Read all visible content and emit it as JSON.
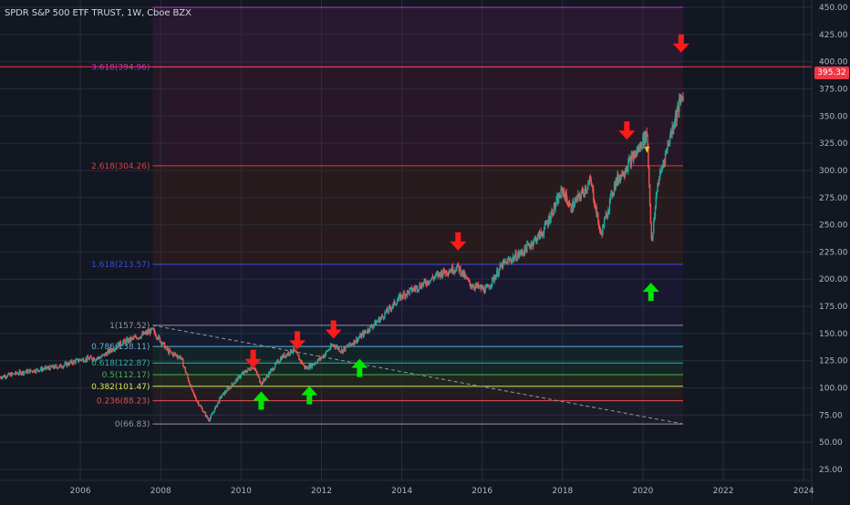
{
  "header": {
    "title": "SPDR S&P 500 ETF TRUST, 1W, Cboe BZX"
  },
  "price_label": {
    "value": "395.32",
    "color": "#f23645"
  },
  "colors": {
    "background": "#131722",
    "grid": "#2a2e39",
    "axis_text": "#b2b5be",
    "up_arrow": "#00e600",
    "down_arrow": "#ff1a1a",
    "candle": "#26a69a"
  },
  "chart_data": {
    "type": "line",
    "title": "SPDR S&P 500 ETF TRUST, 1W, Cboe BZX",
    "xlabel": "",
    "ylabel": "",
    "xlim": [
      2004.0,
      2024.2
    ],
    "ylim": [
      20,
      455
    ],
    "x_ticks": [
      "2006",
      "2008",
      "2010",
      "2012",
      "2014",
      "2016",
      "2018",
      "2020",
      "2022",
      "2024"
    ],
    "y_ticks": [
      "450.00",
      "425.00",
      "400.00",
      "375.00",
      "350.00",
      "325.00",
      "300.00",
      "275.00",
      "250.00",
      "225.00",
      "200.00",
      "175.00",
      "150.00",
      "125.00",
      "100.00",
      "75.00",
      "50.00",
      "25.00"
    ],
    "grid": true,
    "series": [
      {
        "x": [
          2004.0,
          2004.5,
          2005.0,
          2005.5,
          2006.0,
          2006.5,
          2007.0,
          2007.5,
          2007.8,
          2008.2,
          2008.5,
          2008.8,
          2008.9,
          2009.2,
          2009.5,
          2010.0,
          2010.3,
          2010.5,
          2011.0,
          2011.3,
          2011.6,
          2011.8,
          2012.0,
          2012.3,
          2012.5,
          2012.9,
          2013.5,
          2014.0,
          2014.5,
          2015.0,
          2015.4,
          2015.7,
          2016.1,
          2016.5,
          2017.0,
          2017.5,
          2018.0,
          2018.2,
          2018.7,
          2018.95,
          2019.3,
          2019.9,
          2020.1,
          2020.22,
          2020.35,
          2020.7,
          2020.9,
          2021.0
        ],
        "values": [
          110,
          114,
          117,
          120,
          126,
          128,
          141,
          148,
          153,
          133,
          128,
          95,
          88,
          70,
          92,
          112,
          120,
          104,
          128,
          135,
          118,
          122,
          128,
          140,
          134,
          145,
          165,
          185,
          195,
          206,
          211,
          195,
          190,
          213,
          225,
          243,
          282,
          265,
          290,
          240,
          288,
          320,
          335,
          230,
          285,
          335,
          360,
          370
        ]
      }
    ],
    "fib_left": [
      {
        "label": "3.618(394.96)",
        "value": 394.96,
        "color": "#b03fb8"
      },
      {
        "label": "2.618(304.26)",
        "value": 304.26,
        "color": "#e03b3b"
      },
      {
        "label": "1.618(213.57)",
        "value": 213.57,
        "color": "#3a4cdc"
      },
      {
        "label": "1(157.52)",
        "value": 157.52,
        "color": "#9598a1"
      },
      {
        "label": "0.786(138.11)",
        "value": 138.11,
        "color": "#62b0d8"
      },
      {
        "label": "0.618(122.87)",
        "value": 122.87,
        "color": "#20b2aa"
      },
      {
        "label": "0.5(112.17)",
        "value": 112.17,
        "color": "#4caf50"
      },
      {
        "label": "0.382(101.47)",
        "value": 101.47,
        "color": "#d4e157"
      },
      {
        "label": "0.236(88.23)",
        "value": 88.23,
        "color": "#e05050"
      },
      {
        "label": "0(66.83)",
        "value": 66.83,
        "color": "#9598a1"
      }
    ],
    "fib_right_levels": [
      450,
      395.32
    ],
    "annotations": [
      {
        "type": "down-arrow",
        "x": 2010.3,
        "y": 125
      },
      {
        "type": "down-arrow",
        "x": 2011.4,
        "y": 142
      },
      {
        "type": "down-arrow",
        "x": 2012.3,
        "y": 152
      },
      {
        "type": "down-arrow",
        "x": 2015.4,
        "y": 233
      },
      {
        "type": "down-arrow",
        "x": 2019.6,
        "y": 335
      },
      {
        "type": "down-arrow",
        "x": 2020.95,
        "y": 415
      },
      {
        "type": "up-arrow",
        "x": 2010.5,
        "y": 90
      },
      {
        "type": "up-arrow",
        "x": 2011.7,
        "y": 95
      },
      {
        "type": "up-arrow",
        "x": 2012.95,
        "y": 120
      },
      {
        "type": "up-arrow",
        "x": 2020.2,
        "y": 190
      }
    ]
  }
}
